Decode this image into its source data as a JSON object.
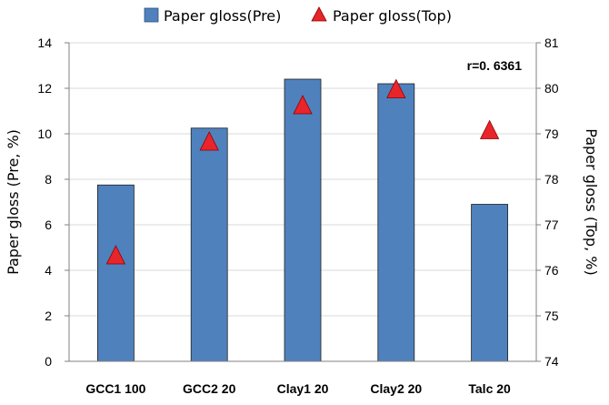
{
  "chart_data": {
    "type": "bar+scatter",
    "categories": [
      "GCC1 100",
      "GCC2 20",
      "Clay1 20",
      "Clay2 20",
      "Talc 20"
    ],
    "series": [
      {
        "name": "Paper gloss(Pre)",
        "kind": "bar",
        "axis": "left",
        "color": "#4f81bd",
        "values": [
          7.75,
          10.25,
          12.4,
          12.2,
          6.9
        ]
      },
      {
        "name": "Paper gloss(Top)",
        "kind": "marker-triangle",
        "axis": "right",
        "color": "#e8252b",
        "values": [
          76.3,
          78.8,
          79.6,
          79.95,
          79.05
        ]
      }
    ],
    "ylabel": "Paper gloss  (Pre, %)",
    "ylabel_right": "Paper gloss  (Top, %)",
    "ylim": [
      0,
      14
    ],
    "ylim_right": [
      74,
      81
    ],
    "yticks": [
      "0",
      "2",
      "4",
      "6",
      "8",
      "10",
      "12",
      "14"
    ],
    "yticks_right": [
      "74",
      "75",
      "76",
      "77",
      "78",
      "79",
      "80",
      "81"
    ],
    "annotation": "r=0. 6361",
    "grid": true,
    "legend_position": "top"
  }
}
